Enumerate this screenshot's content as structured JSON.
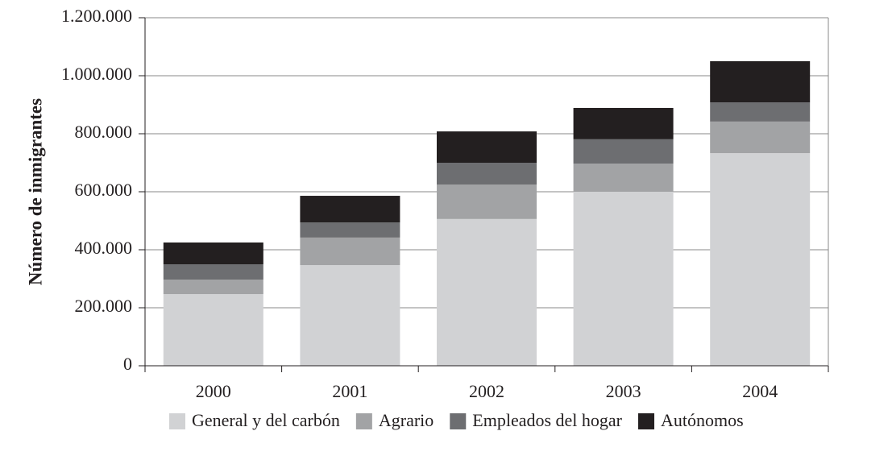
{
  "chart_data": {
    "type": "stacked_bar",
    "ylabel": "Número de inmigrantes",
    "categories": [
      "2000",
      "2001",
      "2002",
      "2003",
      "2004"
    ],
    "series": [
      {
        "name": "General y del carbón",
        "color": "#d1d2d4",
        "values": [
          247000,
          347000,
          506000,
          600000,
          733000
        ]
      },
      {
        "name": "Agrario",
        "color": "#a2a3a5",
        "values": [
          50000,
          95000,
          119000,
          97000,
          109000
        ]
      },
      {
        "name": "Empleados del hogar",
        "color": "#6d6e71",
        "values": [
          53000,
          52000,
          75000,
          84000,
          66000
        ]
      },
      {
        "name": "Autónomos",
        "color": "#231f20",
        "values": [
          75000,
          92000,
          108000,
          108000,
          142000
        ]
      }
    ],
    "ylim": [
      0,
      1200000
    ],
    "yticks": [
      0,
      {
        "value": 200000,
        "label": "200.000"
      },
      {
        "value": 400000,
        "label": "400.000"
      },
      {
        "value": 600000,
        "label": "600.000"
      },
      {
        "value": 800000,
        "label": "800.000"
      },
      {
        "value": 1000000,
        "label": "1.000.000"
      },
      {
        "value": 1200000,
        "label": "1.200.000"
      }
    ],
    "grid": true
  }
}
